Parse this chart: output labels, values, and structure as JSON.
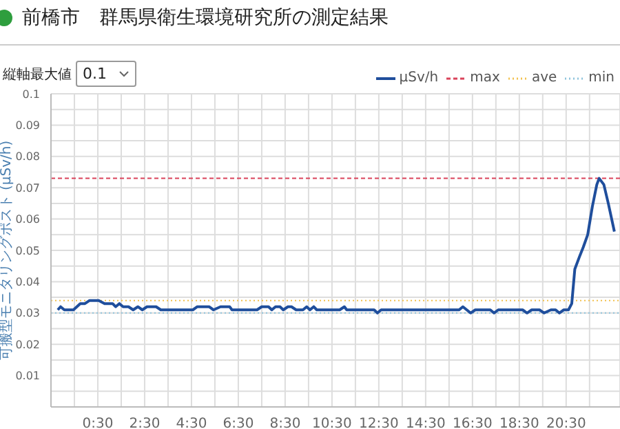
{
  "chart_data": {
    "type": "line",
    "title": "前橋市　群馬県衛生環境研究所の測定結果",
    "ylabel": "可搬型モニタリングポスト (μSv/h)",
    "annotations": [
      "縦軸最大値",
      "0.1"
    ],
    "xlim": [
      -1.5,
      22.8
    ],
    "xticks": [
      {
        "value": -1.5,
        "label": null
      },
      {
        "value": -0.5,
        "label": null
      },
      {
        "value": 0.5,
        "label": "0:30"
      },
      {
        "value": 1.5,
        "label": null
      },
      {
        "value": 2.5,
        "label": "2:30"
      },
      {
        "value": 3.5,
        "label": null
      },
      {
        "value": 4.5,
        "label": "4:30"
      },
      {
        "value": 5.5,
        "label": null
      },
      {
        "value": 6.5,
        "label": "6:30"
      },
      {
        "value": 7.5,
        "label": null
      },
      {
        "value": 8.5,
        "label": "8:30"
      },
      {
        "value": 9.5,
        "label": null
      },
      {
        "value": 10.5,
        "label": "10:30"
      },
      {
        "value": 11.5,
        "label": null
      },
      {
        "value": 12.5,
        "label": "12:30"
      },
      {
        "value": 13.5,
        "label": null
      },
      {
        "value": 14.5,
        "label": "14:30"
      },
      {
        "value": 15.5,
        "label": null
      },
      {
        "value": 16.5,
        "label": "16:30"
      },
      {
        "value": 17.5,
        "label": null
      },
      {
        "value": 18.5,
        "label": "18:30"
      },
      {
        "value": 19.5,
        "label": null
      },
      {
        "value": 20.5,
        "label": "20:30"
      },
      {
        "value": 21.5,
        "label": null
      }
    ],
    "ylim": [
      0,
      0.1
    ],
    "yticks": [
      {
        "value": 0,
        "label": null
      },
      {
        "value": 0.005,
        "label": null
      },
      0.01,
      {
        "value": 0.015,
        "label": null
      },
      0.02,
      {
        "value": 0.025,
        "label": null
      },
      0.03,
      {
        "value": 0.035,
        "label": null
      },
      0.04,
      {
        "value": 0.045,
        "label": null
      },
      0.05,
      {
        "value": 0.055,
        "label": null
      },
      0.06,
      {
        "value": 0.065,
        "label": null
      },
      0.07,
      {
        "value": 0.075,
        "label": null
      },
      0.08,
      {
        "value": 0.085,
        "label": null
      },
      0.09,
      {
        "value": 0.095,
        "label": null
      },
      0.1
    ],
    "grid": true,
    "legend": "top right",
    "marker": "none",
    "line_style": "solid",
    "x": [
      -1.21,
      -1.09,
      -0.93,
      -0.54,
      -0.25,
      -0.05,
      0.15,
      0.54,
      0.79,
      1.13,
      1.26,
      1.42,
      1.58,
      1.81,
      2.01,
      2.21,
      2.4,
      2.6,
      2.99,
      3.19,
      4.56,
      4.75,
      5.25,
      5.44,
      5.74,
      6.13,
      6.23,
      7.3,
      7.5,
      7.79,
      7.93,
      8.09,
      8.28,
      8.42,
      8.62,
      8.77,
      8.97,
      9.26,
      9.42,
      9.56,
      9.72,
      9.85,
      10.83,
      11.03,
      11.13,
      12.3,
      12.44,
      12.6,
      15.93,
      16.09,
      16.42,
      16.62,
      17.26,
      17.42,
      17.6,
      18.64,
      18.83,
      19.03,
      19.36,
      19.56,
      19.85,
      20.05,
      20.21,
      20.4,
      20.6,
      20.74,
      20.87,
      21.07,
      21.23,
      21.42,
      21.62,
      21.81,
      21.91,
      22.11,
      22.3,
      22.56
    ],
    "series": [
      {
        "name": "μSv/h",
        "color": "#1f4e9c",
        "values": [
          0.031,
          0.032,
          0.031,
          0.031,
          0.033,
          0.033,
          0.034,
          0.034,
          0.033,
          0.033,
          0.032,
          0.033,
          0.032,
          0.032,
          0.031,
          0.032,
          0.031,
          0.032,
          0.032,
          0.031,
          0.031,
          0.032,
          0.032,
          0.031,
          0.032,
          0.032,
          0.031,
          0.031,
          0.032,
          0.032,
          0.031,
          0.032,
          0.032,
          0.031,
          0.032,
          0.032,
          0.031,
          0.031,
          0.032,
          0.031,
          0.032,
          0.031,
          0.031,
          0.032,
          0.031,
          0.031,
          0.03,
          0.031,
          0.031,
          0.032,
          0.03,
          0.031,
          0.031,
          0.03,
          0.031,
          0.031,
          0.03,
          0.031,
          0.031,
          0.03,
          0.031,
          0.031,
          0.03,
          0.031,
          0.031,
          0.033,
          0.044,
          0.048,
          0.051,
          0.055,
          0.064,
          0.071,
          0.073,
          0.071,
          0.065,
          0.056
        ]
      }
    ],
    "ref_lines": [
      {
        "axis": "y",
        "value": 0.073,
        "label": "max",
        "color": "#d9435a",
        "line_style": "dashed"
      },
      {
        "axis": "y",
        "value": 0.034,
        "label": "ave",
        "color": "#f2c14e",
        "line_style": "dotted"
      },
      {
        "axis": "y",
        "value": 0.03,
        "label": "min",
        "color": "#8ec3dc",
        "line_style": "dotted"
      }
    ]
  }
}
